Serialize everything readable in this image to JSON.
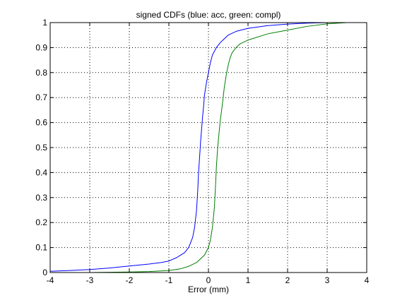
{
  "chart_data": {
    "type": "line",
    "title": "signed CDFs (blue: acc, green: compl)",
    "xlabel": "Error (mm)",
    "ylabel": "",
    "xlim": [
      -4,
      4
    ],
    "ylim": [
      0,
      1
    ],
    "xticks": [
      "-4",
      "-3",
      "-2",
      "-1",
      "0",
      "1",
      "2",
      "3",
      "4"
    ],
    "yticks": [
      "0",
      "0.1",
      "0.2",
      "0.3",
      "0.4",
      "0.5",
      "0.6",
      "0.7",
      "0.8",
      "0.9",
      "1"
    ],
    "grid": true,
    "series": [
      {
        "color": "#0000ff",
        "points": [
          [
            -4,
            0.005
          ],
          [
            -3.5,
            0.008
          ],
          [
            -3,
            0.012
          ],
          [
            -2.5,
            0.018
          ],
          [
            -2,
            0.026
          ],
          [
            -1.5,
            0.034
          ],
          [
            -1.2,
            0.04
          ],
          [
            -1,
            0.046
          ],
          [
            -0.8,
            0.06
          ],
          [
            -0.6,
            0.08
          ],
          [
            -0.5,
            0.1
          ],
          [
            -0.4,
            0.14
          ],
          [
            -0.35,
            0.18
          ],
          [
            -0.3,
            0.25
          ],
          [
            -0.27,
            0.33
          ],
          [
            -0.25,
            0.4
          ],
          [
            -0.22,
            0.47
          ],
          [
            -0.2,
            0.52
          ],
          [
            -0.17,
            0.58
          ],
          [
            -0.15,
            0.62
          ],
          [
            -0.12,
            0.67
          ],
          [
            -0.1,
            0.71
          ],
          [
            -0.05,
            0.76
          ],
          [
            0,
            0.8
          ],
          [
            0.05,
            0.84
          ],
          [
            0.1,
            0.87
          ],
          [
            0.2,
            0.9
          ],
          [
            0.3,
            0.92
          ],
          [
            0.4,
            0.935
          ],
          [
            0.5,
            0.95
          ],
          [
            0.7,
            0.965
          ],
          [
            1,
            0.977
          ],
          [
            1.5,
            0.988
          ],
          [
            2,
            0.994
          ],
          [
            2.5,
            0.998
          ],
          [
            3,
            1.0
          ],
          [
            4,
            1.0
          ]
        ]
      },
      {
        "color": "#007f00",
        "points": [
          [
            -4,
            0.0
          ],
          [
            -3,
            0.0
          ],
          [
            -2,
            0.002
          ],
          [
            -1.5,
            0.004
          ],
          [
            -1,
            0.008
          ],
          [
            -0.7,
            0.015
          ],
          [
            -0.5,
            0.025
          ],
          [
            -0.3,
            0.04
          ],
          [
            -0.1,
            0.07
          ],
          [
            0,
            0.1
          ],
          [
            0.05,
            0.13
          ],
          [
            0.1,
            0.18
          ],
          [
            0.15,
            0.26
          ],
          [
            0.18,
            0.35
          ],
          [
            0.2,
            0.42
          ],
          [
            0.22,
            0.47
          ],
          [
            0.25,
            0.53
          ],
          [
            0.3,
            0.61
          ],
          [
            0.35,
            0.67
          ],
          [
            0.4,
            0.74
          ],
          [
            0.45,
            0.79
          ],
          [
            0.5,
            0.83
          ],
          [
            0.55,
            0.86
          ],
          [
            0.6,
            0.88
          ],
          [
            0.7,
            0.9
          ],
          [
            0.8,
            0.915
          ],
          [
            1,
            0.93
          ],
          [
            1.5,
            0.955
          ],
          [
            2,
            0.97
          ],
          [
            2.5,
            0.985
          ],
          [
            3,
            0.995
          ],
          [
            3.5,
            1.0
          ],
          [
            4,
            1.0
          ]
        ]
      }
    ]
  }
}
